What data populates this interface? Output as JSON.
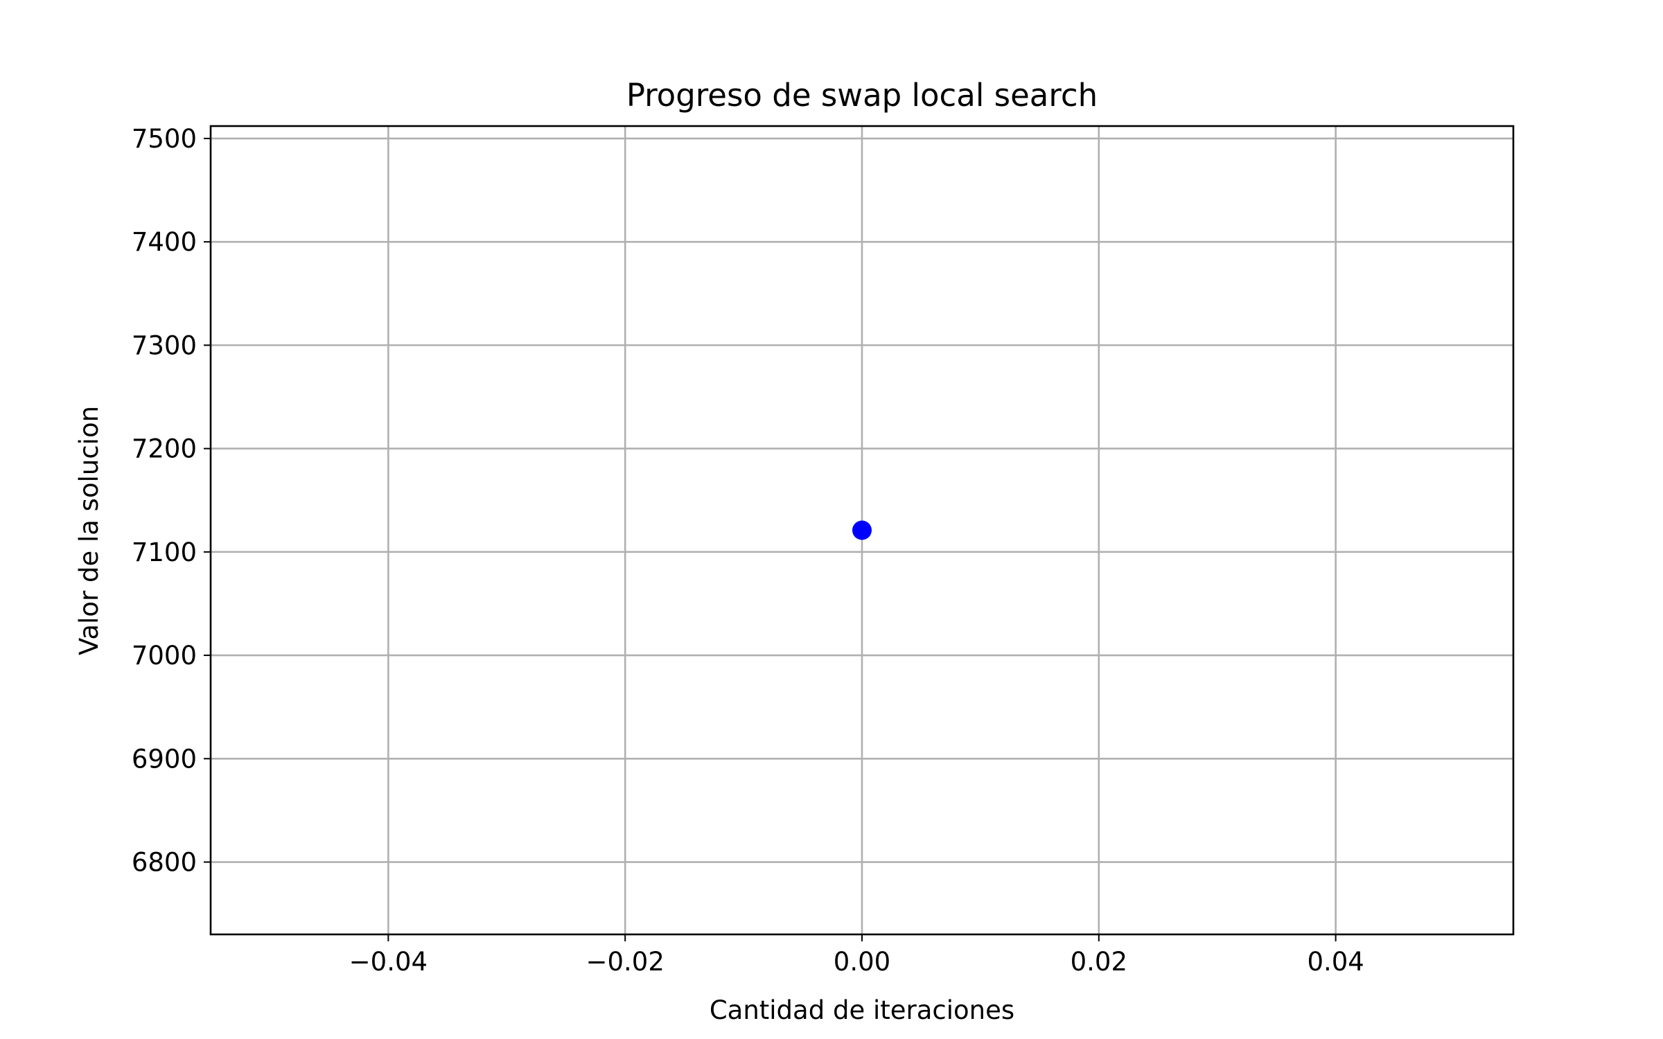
{
  "chart_data": {
    "type": "scatter",
    "title": "Progreso de swap local search",
    "xlabel": "Cantidad de iteraciones",
    "ylabel": "Valor de la solucion",
    "xlim": [
      -0.055,
      0.055
    ],
    "ylim": [
      6730,
      7512
    ],
    "xticks": [
      -0.04,
      -0.02,
      0.0,
      0.02,
      0.04
    ],
    "xtick_labels": [
      "−0.04",
      "−0.02",
      "0.00",
      "0.02",
      "0.04"
    ],
    "yticks": [
      6800,
      6900,
      7000,
      7100,
      7200,
      7300,
      7400,
      7500
    ],
    "ytick_labels": [
      "6800",
      "6900",
      "7000",
      "7100",
      "7200",
      "7300",
      "7400",
      "7500"
    ],
    "grid": true,
    "series": [
      {
        "color": "#0000ff",
        "marker": "circle",
        "points": [
          {
            "x": 0.0,
            "y": 7121
          }
        ]
      }
    ]
  }
}
